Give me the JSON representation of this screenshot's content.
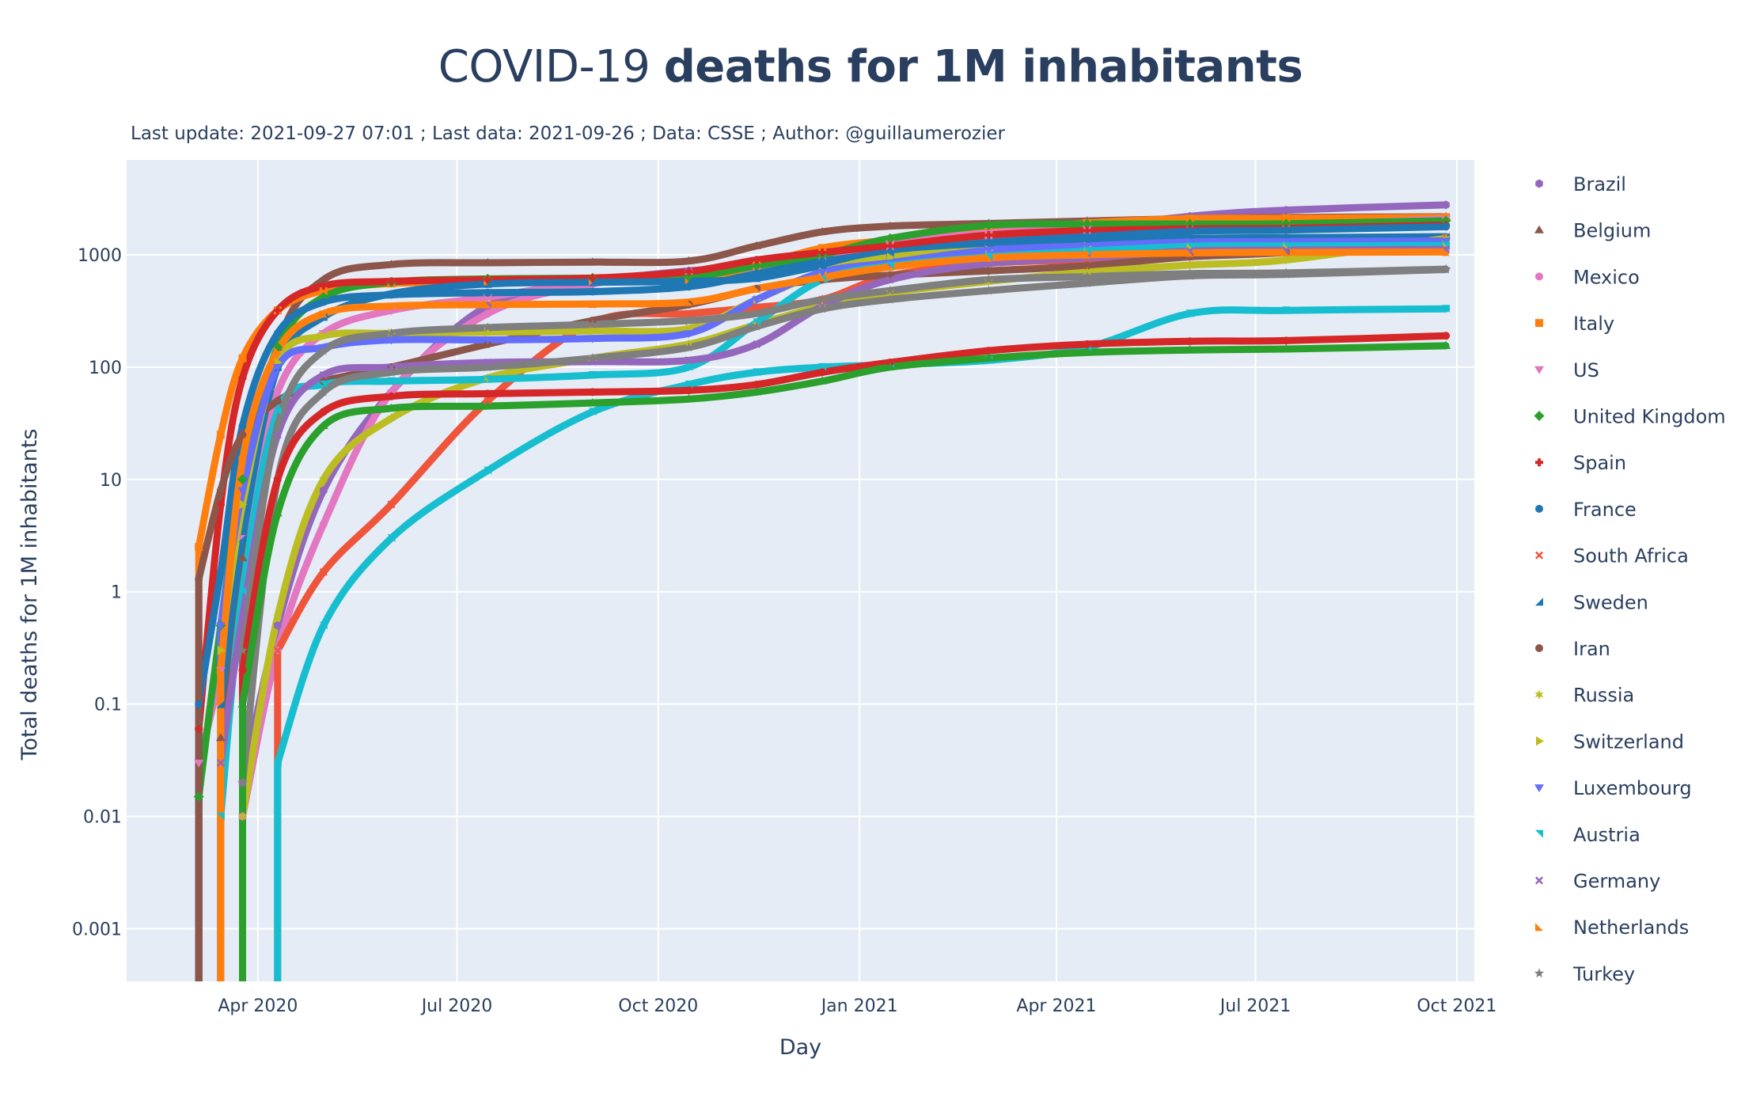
{
  "title": {
    "light": "COVID-19 ",
    "bold": "deaths for 1M inhabitants"
  },
  "subtitle": "Last update: 2021-09-27 07:01 ; Last data: 2021-09-26 ; Data: CSSE ; Author: @guillaumerozier",
  "chart_data": {
    "type": "line",
    "title": "COVID-19 deaths for 1M inhabitants",
    "subtitle": "Last update: 2021-09-27 07:01 ; Last data: 2021-09-26 ; Data: CSSE ; Author: @guillaumerozier",
    "xlabel": "Day",
    "ylabel": "Total deaths  for 1M inhabitants",
    "yscale": "log",
    "xlim": [
      "2020-02-01",
      "2021-10-09"
    ],
    "ylim": [
      0.00034,
      7000
    ],
    "grid": true,
    "legend_position": "right",
    "x_ticks": [
      {
        "date": "2020-04-01",
        "label": "Apr 2020"
      },
      {
        "date": "2020-07-01",
        "label": "Jul 2020"
      },
      {
        "date": "2020-10-01",
        "label": "Oct 2020"
      },
      {
        "date": "2021-01-01",
        "label": "Jan 2021"
      },
      {
        "date": "2021-04-01",
        "label": "Apr 2021"
      },
      {
        "date": "2021-07-01",
        "label": "Jul 2021"
      },
      {
        "date": "2021-10-01",
        "label": "Oct 2021"
      }
    ],
    "y_ticks": [
      {
        "value": 1000,
        "label": "1000"
      },
      {
        "value": 100,
        "label": "100"
      },
      {
        "value": 10,
        "label": "10"
      },
      {
        "value": 1,
        "label": "1"
      },
      {
        "value": 0.1,
        "label": "0.1"
      },
      {
        "value": 0.01,
        "label": "0.01"
      },
      {
        "value": 0.001,
        "label": "0.001"
      }
    ],
    "x": [
      "2020-03-05",
      "2020-03-15",
      "2020-03-25",
      "2020-04-10",
      "2020-05-01",
      "2020-06-01",
      "2020-07-15",
      "2020-09-01",
      "2020-10-15",
      "2020-11-15",
      "2020-12-15",
      "2021-01-15",
      "2021-03-01",
      "2021-04-15",
      "2021-06-01",
      "2021-07-15",
      "2021-09-26"
    ],
    "series": [
      {
        "name": "Brazil",
        "color": "#9467bd",
        "marker": "hexagon",
        "values": [
          null,
          null,
          0.02,
          0.5,
          8,
          60,
          350,
          570,
          720,
          780,
          880,
          1000,
          1200,
          1700,
          2200,
          2500,
          2780
        ]
      },
      {
        "name": "Belgium",
        "color": "#8c564b",
        "marker": "triangle-up",
        "values": [
          null,
          0.05,
          2,
          150,
          600,
          820,
          850,
          860,
          880,
          1200,
          1600,
          1800,
          1900,
          2000,
          2100,
          2150,
          2180
        ]
      },
      {
        "name": "Mexico",
        "color": "#e377c2",
        "marker": "circle",
        "values": [
          null,
          null,
          0.01,
          0.3,
          4,
          60,
          300,
          550,
          680,
          780,
          900,
          1100,
          1420,
          1600,
          1700,
          1800,
          2100
        ]
      },
      {
        "name": "Italy",
        "color": "#ff7f0e",
        "marker": "square",
        "values": [
          2.5,
          25,
          120,
          320,
          480,
          555,
          580,
          590,
          600,
          800,
          1150,
          1350,
          1600,
          1920,
          2100,
          2115,
          2160
        ]
      },
      {
        "name": "US",
        "color": "#e377c2",
        "marker": "triangle-down",
        "values": [
          0.03,
          0.2,
          3,
          60,
          200,
          320,
          420,
          580,
          680,
          780,
          940,
          1250,
          1560,
          1700,
          1780,
          1810,
          2090
        ]
      },
      {
        "name": "United Kingdom",
        "color": "#2ca02c",
        "marker": "diamond",
        "values": [
          0.015,
          0.5,
          10,
          150,
          420,
          570,
          610,
          620,
          640,
          800,
          1000,
          1400,
          1830,
          1880,
          1880,
          1890,
          2010
        ]
      },
      {
        "name": "Spain",
        "color": "#d62728",
        "marker": "cross",
        "values": [
          0.06,
          6,
          80,
          320,
          530,
          580,
          600,
          620,
          710,
          900,
          1050,
          1200,
          1500,
          1640,
          1700,
          1720,
          1840
        ]
      },
      {
        "name": "France",
        "color": "#1f77b4",
        "marker": "circle",
        "values": [
          0.1,
          1.5,
          30,
          200,
          380,
          440,
          460,
          470,
          520,
          680,
          870,
          1050,
          1290,
          1450,
          1620,
          1660,
          1780
        ]
      },
      {
        "name": "South Africa",
        "color": "#ef553b",
        "marker": "x-thin",
        "values": [
          null,
          null,
          null,
          0.3,
          1.5,
          6,
          50,
          250,
          300,
          340,
          400,
          650,
          840,
          900,
          960,
          1100,
          1440
        ]
      },
      {
        "name": "Sweden",
        "color": "#1f77b4",
        "marker": "triangle-sw",
        "values": [
          null,
          0.1,
          3,
          100,
          280,
          450,
          550,
          570,
          580,
          620,
          800,
          1000,
          1280,
          1340,
          1400,
          1420,
          1450
        ]
      },
      {
        "name": "Iran",
        "color": "#8c564b",
        "marker": "circle",
        "values": [
          1.3,
          8,
          25,
          50,
          75,
          100,
          160,
          260,
          360,
          500,
          600,
          660,
          720,
          800,
          960,
          1050,
          1380
        ]
      },
      {
        "name": "Russia",
        "color": "#bcbd22",
        "marker": "star-6",
        "values": [
          null,
          null,
          0.01,
          0.6,
          10,
          35,
          80,
          120,
          160,
          240,
          350,
          460,
          580,
          700,
          810,
          900,
          1400
        ]
      },
      {
        "name": "Switzerland",
        "color": "#bcbd22",
        "marker": "triangle-right",
        "values": [
          null,
          0.3,
          6,
          110,
          190,
          200,
          205,
          210,
          220,
          400,
          700,
          950,
          1100,
          1190,
          1200,
          1210,
          1260
        ]
      },
      {
        "name": "Luxembourg",
        "color": "#636efa",
        "marker": "triangle-down",
        "values": [
          null,
          0.5,
          8,
          100,
          150,
          175,
          175,
          180,
          200,
          400,
          700,
          850,
          1100,
          1200,
          1300,
          1310,
          1330
        ]
      },
      {
        "name": "Austria",
        "color": "#17becf",
        "marker": "triangle-ne",
        "values": [
          null,
          0.01,
          1,
          40,
          70,
          75,
          78,
          85,
          100,
          250,
          600,
          800,
          960,
          1080,
          1190,
          1200,
          1210
        ]
      },
      {
        "name": "Germany",
        "color": "#9467bd",
        "marker": "x",
        "values": [
          null,
          0.03,
          0.6,
          25,
          85,
          100,
          110,
          112,
          115,
          160,
          350,
          600,
          840,
          940,
          1080,
          1100,
          1120
        ]
      },
      {
        "name": "Netherlands",
        "color": "#ff7f0e",
        "marker": "triangle-se",
        "values": [
          null,
          0.2,
          15,
          140,
          300,
          350,
          360,
          365,
          380,
          500,
          630,
          780,
          940,
          1000,
          1040,
          1050,
          1060
        ]
      },
      {
        "name": "Turkey",
        "color": "#7f7f7f",
        "marker": "star",
        "values": [
          null,
          null,
          0.3,
          30,
          140,
          200,
          225,
          240,
          260,
          300,
          400,
          480,
          600,
          640,
          680,
          690,
          745
        ]
      },
      {
        "name": "",
        "color": "#7f7f7f",
        "marker": "star",
        "in_legend": false,
        "values": [
          null,
          null,
          0.02,
          10,
          60,
          90,
          100,
          120,
          150,
          230,
          330,
          400,
          480,
          560,
          650,
          670,
          740
        ]
      },
      {
        "name": "",
        "color": "#17becf",
        "marker": "triangle-ne",
        "in_legend": false,
        "values": [
          null,
          null,
          null,
          0.03,
          0.5,
          3,
          12,
          40,
          70,
          90,
          100,
          105,
          115,
          150,
          300,
          320,
          330
        ]
      },
      {
        "name": "",
        "color": "#d62728",
        "marker": "circle",
        "in_legend": false,
        "values": [
          null,
          null,
          0.2,
          10,
          40,
          55,
          58,
          60,
          62,
          70,
          90,
          110,
          140,
          160,
          170,
          172,
          190
        ]
      },
      {
        "name": "",
        "color": "#2ca02c",
        "marker": "triangle-up",
        "in_legend": false,
        "values": [
          null,
          null,
          0.1,
          5,
          30,
          43,
          45,
          48,
          52,
          60,
          75,
          100,
          120,
          135,
          142,
          145,
          155
        ]
      }
    ]
  }
}
